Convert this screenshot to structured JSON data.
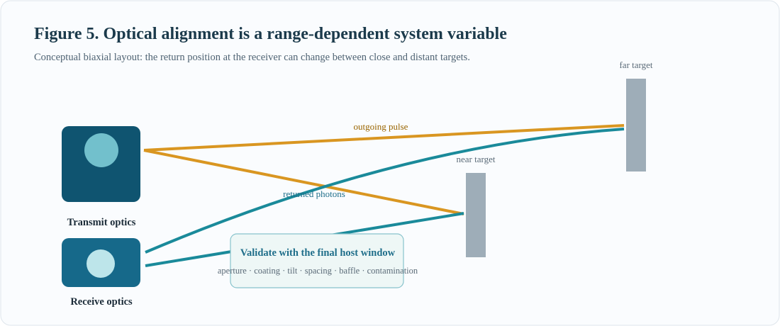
{
  "header": {
    "title": "Figure 5. Optical alignment is a range-dependent system variable",
    "subtitle": "Conceptual biaxial layout: the return position at the receiver can change between close and distant targets."
  },
  "nodes": [
    {
      "label": "Transmit optics"
    },
    {
      "label": "Receive optics"
    },
    {
      "label": "far target"
    },
    {
      "label": "near target"
    }
  ],
  "edges": [
    {
      "label": "outgoing pulse"
    },
    {
      "label": "returned photons"
    }
  ],
  "callout": {
    "title": "Validate with the final host window",
    "text": "aperture · coating · tilt · spacing · baffle · contamination"
  }
}
